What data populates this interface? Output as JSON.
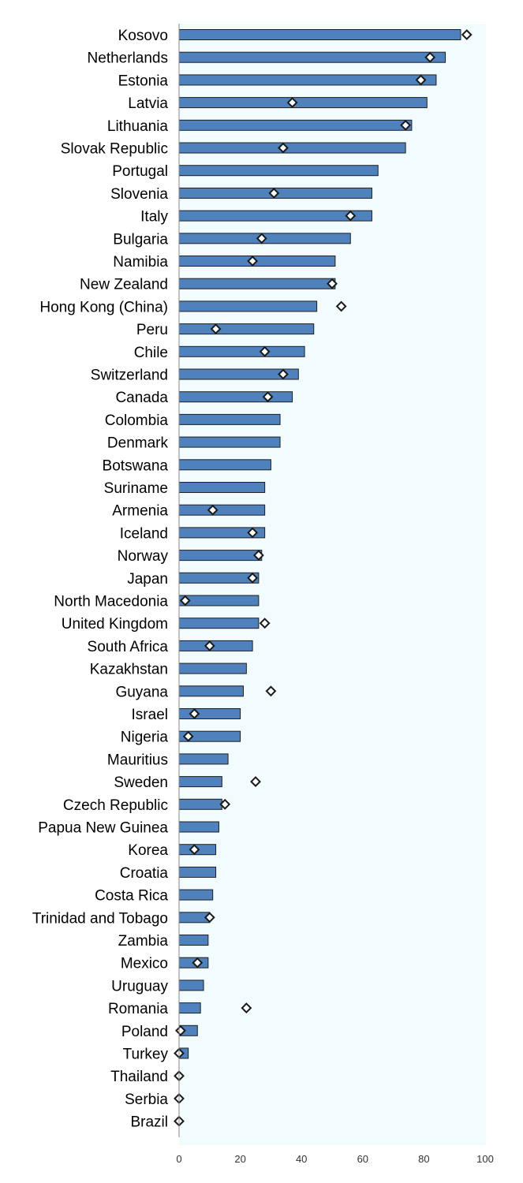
{
  "chart_data": {
    "type": "bar",
    "orientation": "horizontal",
    "title": "",
    "xlabel": "",
    "ylabel": "",
    "xlim": [
      0,
      100
    ],
    "x_ticks": [
      "0",
      "20",
      "40",
      "60",
      "80",
      "100"
    ],
    "grid": false,
    "colors": {
      "bar_fill": "#4f81bd",
      "bar_stroke": "#1f1f1f",
      "marker_fill": "#ffffff",
      "marker_stroke": "#1a1a1a",
      "plot_background": "#f2fbfe"
    },
    "categories": [
      "Kosovo",
      "Netherlands",
      "Estonia",
      "Latvia",
      "Lithuania",
      "Slovak Republic",
      "Portugal",
      "Slovenia",
      "Italy",
      "Bulgaria",
      "Namibia",
      "New Zealand",
      "Hong Kong (China)",
      "Peru",
      "Chile",
      "Switzerland",
      "Canada",
      "Colombia",
      "Denmark",
      "Botswana",
      "Suriname",
      "Armenia",
      "Iceland",
      "Norway",
      "Japan",
      "North Macedonia",
      "United Kingdom",
      "South Africa",
      "Kazakhstan",
      "Guyana",
      "Israel",
      "Nigeria",
      "Mauritius",
      "Sweden",
      "Czech Republic",
      "Papua New Guinea",
      "Korea",
      "Croatia",
      "Costa Rica",
      "Trinidad and Tobago",
      "Zambia",
      "Mexico",
      "Uruguay",
      "Romania",
      "Poland",
      "Turkey",
      "Thailand",
      "Serbia",
      "Brazil"
    ],
    "series": [
      {
        "marker": "bar",
        "values": [
          92,
          87,
          84,
          81,
          76,
          74,
          65,
          63,
          63,
          56,
          51,
          51,
          45,
          44,
          41,
          39,
          37,
          33,
          33,
          30,
          28,
          28,
          28,
          27,
          26,
          26,
          26,
          24,
          22,
          21,
          20,
          20,
          16,
          14,
          14,
          13,
          12,
          12,
          11,
          10,
          9.5,
          9.5,
          8,
          7,
          6,
          3,
          0,
          0,
          0
        ]
      },
      {
        "marker": "diamond",
        "values": [
          94,
          82,
          79,
          37,
          74,
          34,
          null,
          31,
          56,
          27,
          24,
          50,
          53,
          12,
          28,
          34,
          29,
          null,
          null,
          null,
          null,
          11,
          24,
          26,
          24,
          2,
          28,
          10,
          null,
          30,
          5,
          3,
          null,
          25,
          15,
          null,
          5,
          null,
          null,
          10,
          null,
          6,
          null,
          22,
          0.5,
          0,
          0,
          0,
          0
        ]
      }
    ]
  }
}
